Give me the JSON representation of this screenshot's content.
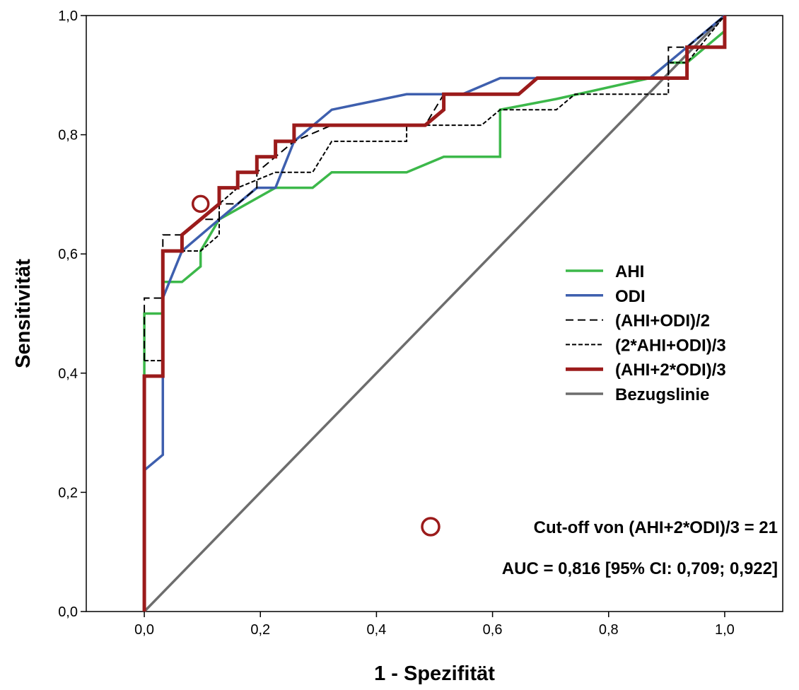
{
  "chart_data": {
    "type": "line",
    "title": "",
    "xlabel": "1 - Spezifität",
    "ylabel": "Sensitivität",
    "xlim": [
      -0.1,
      1.1
    ],
    "ylim": [
      0.0,
      1.0
    ],
    "xticks": [
      "0,0",
      "0,2",
      "0,4",
      "0,6",
      "0,8",
      "1,0"
    ],
    "yticks": [
      "0,0",
      "0,2",
      "0,4",
      "0,6",
      "0,8",
      "1,0"
    ],
    "grid": false,
    "legend_position": "right",
    "series": [
      {
        "name": "AHI",
        "color": "#3cb84a",
        "style": "solid",
        "points": [
          [
            0,
            0.395
          ],
          [
            0,
            0.5
          ],
          [
            0.032,
            0.5
          ],
          [
            0.032,
            0.553
          ],
          [
            0.065,
            0.553
          ],
          [
            0.097,
            0.579
          ],
          [
            0.097,
            0.605
          ],
          [
            0.129,
            0.658
          ],
          [
            0.226,
            0.711
          ],
          [
            0.29,
            0.711
          ],
          [
            0.323,
            0.737
          ],
          [
            0.452,
            0.737
          ],
          [
            0.516,
            0.763
          ],
          [
            0.613,
            0.763
          ],
          [
            0.613,
            0.842
          ],
          [
            0.71,
            0.86
          ],
          [
            0.871,
            0.895
          ],
          [
            0.903,
            0.921
          ],
          [
            0.935,
            0.921
          ],
          [
            1.0,
            0.974
          ],
          [
            1.0,
            1.0
          ]
        ]
      },
      {
        "name": "ODI",
        "color": "#3e5fae",
        "style": "solid",
        "points": [
          [
            0,
            0.237
          ],
          [
            0.032,
            0.263
          ],
          [
            0.032,
            0.526
          ],
          [
            0.065,
            0.605
          ],
          [
            0.129,
            0.658
          ],
          [
            0.194,
            0.711
          ],
          [
            0.226,
            0.711
          ],
          [
            0.258,
            0.789
          ],
          [
            0.323,
            0.842
          ],
          [
            0.452,
            0.868
          ],
          [
            0.548,
            0.868
          ],
          [
            0.613,
            0.895
          ],
          [
            0.677,
            0.895
          ],
          [
            0.871,
            0.895
          ],
          [
            0.935,
            0.947
          ],
          [
            1.0,
            1.0
          ]
        ]
      },
      {
        "name": "(AHI+ODI)/2",
        "color": "#000000",
        "style": "dash-long",
        "points": [
          [
            0,
            0.421
          ],
          [
            0,
            0.526
          ],
          [
            0.032,
            0.526
          ],
          [
            0.032,
            0.632
          ],
          [
            0.065,
            0.632
          ],
          [
            0.097,
            0.658
          ],
          [
            0.129,
            0.658
          ],
          [
            0.129,
            0.684
          ],
          [
            0.161,
            0.684
          ],
          [
            0.194,
            0.711
          ],
          [
            0.194,
            0.737
          ],
          [
            0.258,
            0.789
          ],
          [
            0.323,
            0.816
          ],
          [
            0.484,
            0.816
          ],
          [
            0.516,
            0.868
          ],
          [
            0.645,
            0.868
          ],
          [
            0.677,
            0.895
          ],
          [
            0.903,
            0.895
          ],
          [
            0.903,
            0.947
          ],
          [
            0.935,
            0.947
          ],
          [
            1.0,
            1.0
          ]
        ]
      },
      {
        "name": "(2*AHI+ODI)/3",
        "color": "#000000",
        "style": "dash-short",
        "points": [
          [
            0,
            0.421
          ],
          [
            0.032,
            0.421
          ],
          [
            0.032,
            0.605
          ],
          [
            0.097,
            0.605
          ],
          [
            0.129,
            0.632
          ],
          [
            0.129,
            0.684
          ],
          [
            0.161,
            0.711
          ],
          [
            0.226,
            0.737
          ],
          [
            0.29,
            0.737
          ],
          [
            0.323,
            0.789
          ],
          [
            0.452,
            0.789
          ],
          [
            0.452,
            0.816
          ],
          [
            0.581,
            0.816
          ],
          [
            0.613,
            0.842
          ],
          [
            0.71,
            0.842
          ],
          [
            0.742,
            0.868
          ],
          [
            0.903,
            0.868
          ],
          [
            0.903,
            0.921
          ],
          [
            0.935,
            0.921
          ],
          [
            1.0,
            1.0
          ]
        ]
      },
      {
        "name": "(AHI+2*ODI)/3",
        "color": "#9b1b1b",
        "style": "solid-thick",
        "points": [
          [
            0,
            0
          ],
          [
            0,
            0.395
          ],
          [
            0.032,
            0.395
          ],
          [
            0.032,
            0.605
          ],
          [
            0.065,
            0.605
          ],
          [
            0.065,
            0.632
          ],
          [
            0.097,
            0.658
          ],
          [
            0.129,
            0.684
          ],
          [
            0.129,
            0.711
          ],
          [
            0.161,
            0.711
          ],
          [
            0.161,
            0.737
          ],
          [
            0.194,
            0.737
          ],
          [
            0.194,
            0.763
          ],
          [
            0.226,
            0.763
          ],
          [
            0.226,
            0.789
          ],
          [
            0.258,
            0.789
          ],
          [
            0.258,
            0.816
          ],
          [
            0.484,
            0.816
          ],
          [
            0.516,
            0.842
          ],
          [
            0.516,
            0.868
          ],
          [
            0.645,
            0.868
          ],
          [
            0.677,
            0.895
          ],
          [
            0.935,
            0.895
          ],
          [
            0.935,
            0.947
          ],
          [
            1.0,
            0.947
          ],
          [
            1.0,
            1.0
          ]
        ]
      },
      {
        "name": "Bezugslinie",
        "color": "#6d6d6d",
        "style": "solid",
        "points": [
          [
            0,
            0
          ],
          [
            1,
            1
          ]
        ]
      }
    ],
    "cutoff_marker": {
      "x": 0.097,
      "y": 0.684,
      "color": "#9b1b1b",
      "label": "Cut-off von (AHI+2*ODI)/3 = 21"
    },
    "auc_text": "AUC = 0,816 [95% CI: 0,709; 0,922]"
  }
}
